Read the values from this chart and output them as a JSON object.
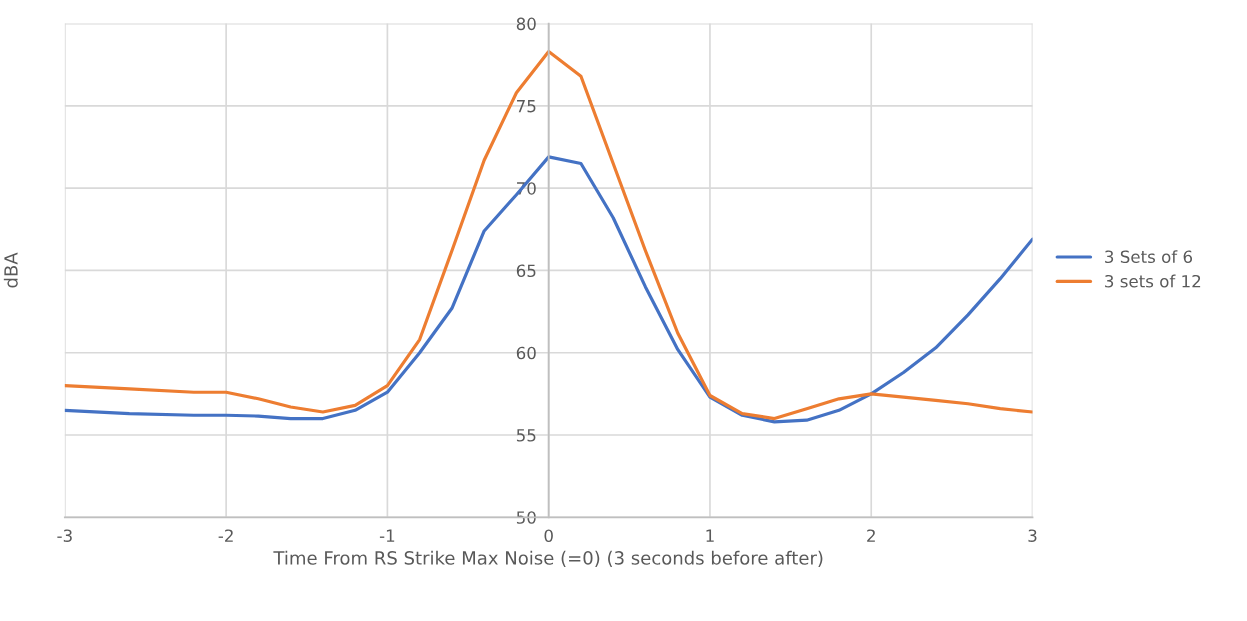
{
  "chart_data": {
    "type": "line",
    "xlabel": "Time From RS Strike Max Noise (=0) (3 seconds before after)",
    "ylabel": "dBA",
    "x": [
      -3,
      -2.6,
      -2.2,
      -2.0,
      -1.8,
      -1.6,
      -1.4,
      -1.2,
      -1.0,
      -0.8,
      -0.6,
      -0.4,
      -0.2,
      0,
      0.2,
      0.4,
      0.6,
      0.8,
      1.0,
      1.2,
      1.4,
      1.6,
      1.8,
      2.0,
      2.2,
      2.4,
      2.6,
      2.8,
      3.0
    ],
    "series": [
      {
        "name": "3 Sets of 6",
        "color": "#4472c4",
        "values": [
          56.5,
          56.3,
          56.2,
          56.2,
          56.15,
          56.0,
          56.0,
          56.5,
          57.6,
          60.0,
          62.7,
          67.4,
          69.6,
          71.9,
          71.5,
          68.2,
          64.0,
          60.2,
          57.3,
          56.2,
          55.8,
          55.9,
          56.5,
          57.5,
          58.8,
          60.3,
          62.3,
          64.5,
          66.9
        ]
      },
      {
        "name": "3 sets of 12",
        "color": "#ed7d31",
        "values": [
          58.0,
          57.8,
          57.6,
          57.6,
          57.2,
          56.7,
          56.4,
          56.8,
          58.0,
          60.8,
          66.2,
          71.7,
          75.8,
          78.3,
          76.8,
          71.5,
          66.2,
          61.2,
          57.4,
          56.3,
          56.0,
          56.6,
          57.2,
          57.5,
          57.3,
          57.1,
          56.9,
          56.6,
          56.4
        ]
      }
    ],
    "xlim": [
      -3,
      3
    ],
    "xticks": [
      -3,
      -2,
      -1,
      0,
      1,
      2,
      3
    ],
    "ylim": [
      50,
      80
    ],
    "yticks": [
      50,
      55,
      60,
      65,
      70,
      75,
      80
    ],
    "grid": true,
    "legend": "right",
    "marker": "none",
    "line_style": "solid"
  }
}
